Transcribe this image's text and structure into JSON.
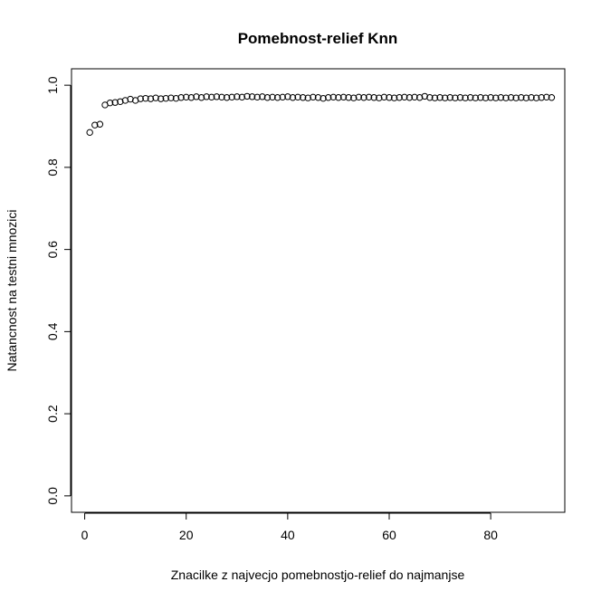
{
  "chart_data": {
    "type": "scatter",
    "title": "Pomebnost-relief Knn",
    "xlabel": "Znacilke z najvecjo pomebnostjo-relief do najmanjse",
    "ylabel": "Natancnost na testni mnozici",
    "xlim": [
      -2.6,
      94.6
    ],
    "ylim": [
      -0.04,
      1.04
    ],
    "x_ticks": [
      0,
      20,
      40,
      60,
      80
    ],
    "y_ticks": [
      0.0,
      0.2,
      0.4,
      0.6,
      0.8,
      1.0
    ],
    "x_tick_labels": [
      "0",
      "20",
      "40",
      "60",
      "80"
    ],
    "y_tick_labels": [
      "0.0",
      "0.2",
      "0.4",
      "0.6",
      "0.8",
      "1.0"
    ],
    "grid": false,
    "marker": "open-circle",
    "x": [
      1,
      2,
      3,
      4,
      5,
      6,
      7,
      8,
      9,
      10,
      11,
      12,
      13,
      14,
      15,
      16,
      17,
      18,
      19,
      20,
      21,
      22,
      23,
      24,
      25,
      26,
      27,
      28,
      29,
      30,
      31,
      32,
      33,
      34,
      35,
      36,
      37,
      38,
      39,
      40,
      41,
      42,
      43,
      44,
      45,
      46,
      47,
      48,
      49,
      50,
      51,
      52,
      53,
      54,
      55,
      56,
      57,
      58,
      59,
      60,
      61,
      62,
      63,
      64,
      65,
      66,
      67,
      68,
      69,
      70,
      71,
      72,
      73,
      74,
      75,
      76,
      77,
      78,
      79,
      80,
      81,
      82,
      83,
      84,
      85,
      86,
      87,
      88,
      89,
      90,
      91,
      92
    ],
    "y": [
      0.885,
      0.903,
      0.905,
      0.952,
      0.957,
      0.958,
      0.96,
      0.963,
      0.966,
      0.963,
      0.967,
      0.968,
      0.967,
      0.969,
      0.967,
      0.968,
      0.969,
      0.968,
      0.97,
      0.971,
      0.97,
      0.972,
      0.97,
      0.972,
      0.971,
      0.972,
      0.971,
      0.97,
      0.971,
      0.972,
      0.971,
      0.973,
      0.972,
      0.971,
      0.972,
      0.97,
      0.971,
      0.97,
      0.971,
      0.972,
      0.97,
      0.971,
      0.97,
      0.969,
      0.971,
      0.97,
      0.968,
      0.97,
      0.971,
      0.97,
      0.971,
      0.97,
      0.969,
      0.971,
      0.97,
      0.971,
      0.97,
      0.969,
      0.971,
      0.97,
      0.969,
      0.97,
      0.971,
      0.97,
      0.971,
      0.97,
      0.973,
      0.97,
      0.969,
      0.97,
      0.969,
      0.97,
      0.969,
      0.97,
      0.969,
      0.97,
      0.969,
      0.97,
      0.969,
      0.97,
      0.969,
      0.97,
      0.969,
      0.97,
      0.969,
      0.97,
      0.969,
      0.97,
      0.969,
      0.97,
      0.971,
      0.97
    ]
  }
}
